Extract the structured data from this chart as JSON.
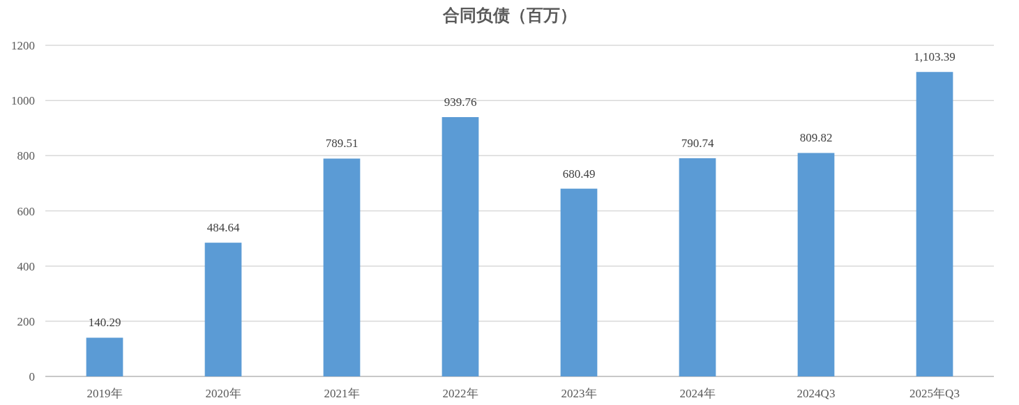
{
  "chart_data": {
    "type": "bar",
    "title": "合同负债（百万）",
    "categories": [
      "2019年",
      "2020年",
      "2021年",
      "2022年",
      "2023年",
      "2024年",
      "2024Q3",
      "2025年Q3"
    ],
    "values": [
      140.29,
      484.64,
      789.51,
      939.76,
      680.49,
      790.74,
      809.82,
      1103.39
    ],
    "value_labels": [
      "140.29",
      "484.64",
      "789.51",
      "939.76",
      "680.49",
      "790.74",
      "809.82",
      "1,103.39"
    ],
    "color": "#5b9bd5",
    "ylim": [
      0,
      1200
    ],
    "yticks": [
      0,
      200,
      400,
      600,
      800,
      1000,
      1200
    ],
    "grid": "y"
  }
}
